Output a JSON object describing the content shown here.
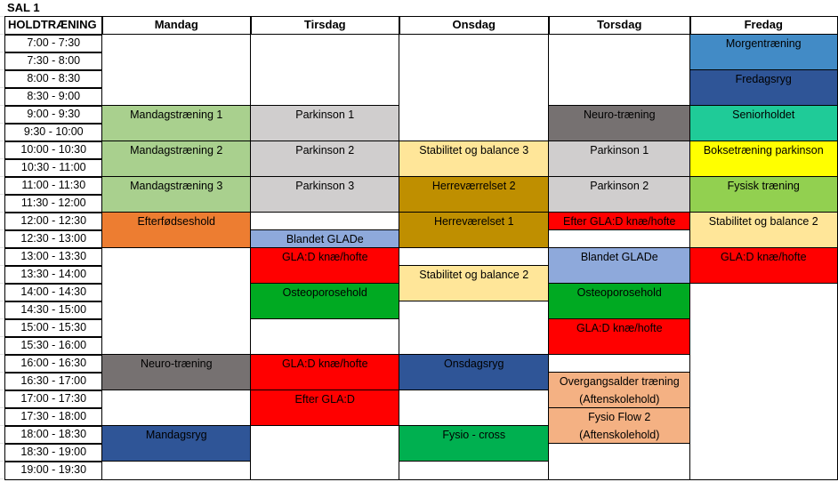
{
  "title": "SAL 1",
  "header": {
    "first_column": "HOLDTRÆNING"
  },
  "times": [
    "7:00 - 7:30",
    "7:30 - 8:00",
    "8:00 - 8:30",
    "8:30 - 9:00",
    "9:00 - 9:30",
    "9:30 - 10:00",
    "10:00 - 10:30",
    "10:30 - 11:00",
    "11:00 - 11:30",
    "11:30 - 12:00",
    "12:00 - 12:30",
    "12:30 - 13:00",
    "13:00 - 13:30",
    "13:30 - 14:00",
    "14:00 - 14:30",
    "14:30 - 15:00",
    "15:00 - 15:30",
    "15:30 - 16:00",
    "16:00 - 16:30",
    "16:30 - 17:00",
    "17:00 - 17:30",
    "17:30 - 18:00",
    "18:00 - 18:30",
    "18:30 - 19:00",
    "19:00 - 19:30"
  ],
  "days": [
    {
      "name": "Mandag",
      "blocks": [
        {
          "label": "",
          "start": "7:00",
          "end": "9:00",
          "color": "#FFFFFF"
        },
        {
          "label": "Mandagstræning 1",
          "start": "9:00",
          "end": "10:00",
          "color": "#A9D08E"
        },
        {
          "label": "Mandagstræning 2",
          "start": "10:00",
          "end": "11:00",
          "color": "#A9D08E"
        },
        {
          "label": "Mandagstræning 3",
          "start": "11:00",
          "end": "12:00",
          "color": "#A9D08E"
        },
        {
          "label": "Efterfødseshold",
          "start": "12:00",
          "end": "13:00",
          "color": "#ED7D31"
        },
        {
          "label": "",
          "start": "13:00",
          "end": "16:00",
          "color": "#FFFFFF"
        },
        {
          "label": "Neuro-træning",
          "start": "16:00",
          "end": "17:00",
          "color": "#767171"
        },
        {
          "label": "",
          "start": "17:00",
          "end": "18:00",
          "color": "#FFFFFF"
        },
        {
          "label": "Mandagsryg",
          "start": "18:00",
          "end": "19:00",
          "color": "#2F5597"
        },
        {
          "label": "",
          "start": "19:00",
          "end": "19:30",
          "color": "#FFFFFF"
        }
      ]
    },
    {
      "name": "Tirsdag",
      "blocks": [
        {
          "label": "",
          "start": "7:00",
          "end": "9:00",
          "color": "#FFFFFF"
        },
        {
          "label": "Parkinson 1",
          "start": "9:00",
          "end": "10:00",
          "color": "#D0CECE"
        },
        {
          "label": "Parkinson 2",
          "start": "10:00",
          "end": "11:00",
          "color": "#D0CECE"
        },
        {
          "label": "Parkinson 3",
          "start": "11:00",
          "end": "12:00",
          "color": "#D0CECE"
        },
        {
          "label": "",
          "start": "12:00",
          "end": "12:30",
          "color": "#FFFFFF"
        },
        {
          "label": "Blandet GLADe",
          "start": "12:30",
          "end": "13:00",
          "color": "#8EA9DB"
        },
        {
          "label": "GLA:D knæ/hofte",
          "start": "13:00",
          "end": "14:00",
          "color": "#FF0000"
        },
        {
          "label": "Osteoporosehold",
          "start": "14:00",
          "end": "15:00",
          "color": "#00AA22"
        },
        {
          "label": "",
          "start": "15:00",
          "end": "16:00",
          "color": "#FFFFFF"
        },
        {
          "label": "GLA:D knæ/hofte",
          "start": "16:00",
          "end": "17:00",
          "color": "#FF0000"
        },
        {
          "label": "Efter GLA:D",
          "start": "17:00",
          "end": "18:00",
          "color": "#FF0000"
        },
        {
          "label": "",
          "start": "18:00",
          "end": "19:30",
          "color": "#FFFFFF"
        }
      ]
    },
    {
      "name": "Onsdag",
      "blocks": [
        {
          "label": "",
          "start": "7:00",
          "end": "10:00",
          "color": "#FFFFFF"
        },
        {
          "label": "Stabilitet og balance 3",
          "start": "10:00",
          "end": "11:00",
          "color": "#FFE699"
        },
        {
          "label": "Herreværrelset 2",
          "start": "11:00",
          "end": "12:00",
          "color": "#BF8F00"
        },
        {
          "label": "Herreværelset 1",
          "start": "12:00",
          "end": "13:00",
          "color": "#BF8F00"
        },
        {
          "label": "",
          "start": "13:00",
          "end": "13:30",
          "color": "#FFFFFF"
        },
        {
          "label": "Stabilitet og balance 2",
          "start": "13:30",
          "end": "14:30",
          "color": "#FFE699"
        },
        {
          "label": "",
          "start": "14:30",
          "end": "16:00",
          "color": "#FFFFFF"
        },
        {
          "label": "Onsdagsryg",
          "start": "16:00",
          "end": "17:00",
          "color": "#2F5597"
        },
        {
          "label": "",
          "start": "17:00",
          "end": "18:00",
          "color": "#FFFFFF"
        },
        {
          "label": "Fysio - cross",
          "start": "18:00",
          "end": "19:00",
          "color": "#00B050"
        },
        {
          "label": "",
          "start": "19:00",
          "end": "19:30",
          "color": "#FFFFFF"
        }
      ]
    },
    {
      "name": "Torsdag",
      "blocks": [
        {
          "label": "",
          "start": "7:00",
          "end": "9:00",
          "color": "#FFFFFF"
        },
        {
          "label": "Neuro-træning",
          "start": "9:00",
          "end": "10:00",
          "color": "#767171"
        },
        {
          "label": "Parkinson 1",
          "start": "10:00",
          "end": "11:00",
          "color": "#D0CECE"
        },
        {
          "label": "Parkinson 2",
          "start": "11:00",
          "end": "12:00",
          "color": "#D0CECE"
        },
        {
          "label": "Efter GLA:D knæ/hofte",
          "start": "12:00",
          "end": "12:30",
          "color": "#FF0000"
        },
        {
          "label": "",
          "start": "12:30",
          "end": "13:00",
          "color": "#FFFFFF"
        },
        {
          "label": "Blandet GLADe",
          "start": "13:00",
          "end": "14:00",
          "color": "#8EA9DB"
        },
        {
          "label": "Osteoporosehold",
          "start": "14:00",
          "end": "15:00",
          "color": "#00AA22"
        },
        {
          "label": "GLA:D knæ/hofte",
          "start": "15:00",
          "end": "16:00",
          "color": "#FF0000"
        },
        {
          "label": "",
          "start": "16:00",
          "end": "16:30",
          "color": "#FFFFFF"
        },
        {
          "label": "Overgangsalder træning (Aftenskolehold)",
          "start": "16:30",
          "end": "17:30",
          "color": "#F4B183"
        },
        {
          "label": "Fysio Flow 2 (Aftenskolehold)",
          "start": "17:30",
          "end": "18:30",
          "color": "#F4B183"
        },
        {
          "label": "",
          "start": "18:30",
          "end": "19:30",
          "color": "#FFFFFF"
        }
      ]
    },
    {
      "name": "Fredag",
      "blocks": [
        {
          "label": "Morgentræning",
          "start": "7:00",
          "end": "8:00",
          "color": "#428BC6"
        },
        {
          "label": "Fredagsryg",
          "start": "8:00",
          "end": "9:00",
          "color": "#2F5597"
        },
        {
          "label": "Seniorholdet",
          "start": "9:00",
          "end": "10:00",
          "color": "#1FCB98"
        },
        {
          "label": "Boksetræning parkinson",
          "start": "10:00",
          "end": "11:00",
          "color": "#FFFF00"
        },
        {
          "label": "Fysisk træning",
          "start": "11:00",
          "end": "12:00",
          "color": "#92D050"
        },
        {
          "label": "Stabilitet og balance 2",
          "start": "12:00",
          "end": "13:00",
          "color": "#FFE699"
        },
        {
          "label": "GLA:D knæ/hofte",
          "start": "13:00",
          "end": "14:00",
          "color": "#FF0000"
        },
        {
          "label": "",
          "start": "14:00",
          "end": "19:30",
          "color": "#FFFFFF"
        }
      ]
    }
  ]
}
